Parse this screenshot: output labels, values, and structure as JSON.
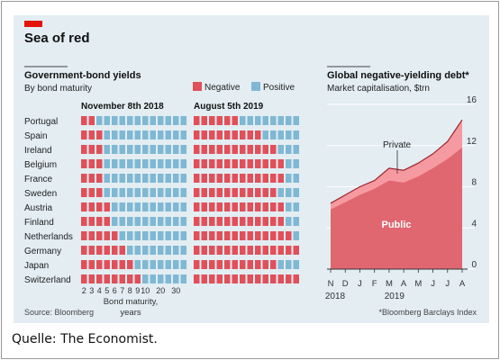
{
  "figure": {
    "title": "Sea of red",
    "source": "Source: Bloomberg",
    "footnote": "*Bloomberg Barclays Index",
    "caption": "Quelle: The Economist.",
    "colors": {
      "negative": "#e0505a",
      "positive": "#7fb8d4",
      "accent": "#e3120b",
      "background": "#e3edf2",
      "area_private": "#f59aa0",
      "area_public": "#e06670",
      "line": "#a0242c"
    }
  },
  "chart_data": [
    {
      "type": "heatmap",
      "title": "Government-bond yields",
      "subtitle": "By bond maturity",
      "legend": [
        "Negative",
        "Positive"
      ],
      "panel_titles": [
        "November 8th 2018",
        "August 5th 2019"
      ],
      "countries": [
        "Portugal",
        "Spain",
        "Ireland",
        "Belgium",
        "France",
        "Sweden",
        "Austria",
        "Finland",
        "Netherlands",
        "Germany",
        "Japan",
        "Switzerland"
      ],
      "maturity_ticks": [
        "2",
        "3",
        "4",
        "5",
        "6",
        "7",
        "8",
        "9",
        "10",
        "20",
        "30"
      ],
      "xlabel": "Bond maturity, years",
      "grid_columns": 14,
      "negative_cells_2018": [
        2,
        3,
        3,
        3,
        3,
        3,
        4,
        4,
        5,
        6,
        7,
        8
      ],
      "negative_cells_2019": [
        6,
        9,
        11,
        12,
        12,
        11,
        12,
        12,
        13,
        14,
        11,
        14
      ]
    },
    {
      "type": "area",
      "title": "Global negative-yielding debt*",
      "subtitle": "Market capitalisation, $trn",
      "series_labels": [
        "Private",
        "Public"
      ],
      "ylim": [
        0,
        16
      ],
      "yticks": [
        0,
        4,
        8,
        12,
        16
      ],
      "x_ticks": [
        "N",
        "D",
        "J",
        "F",
        "M",
        "A",
        "M",
        "J",
        "J",
        "A"
      ],
      "x_years": [
        "2018",
        "2019"
      ],
      "x": [
        "2018-11",
        "2018-12",
        "2019-01",
        "2019-02",
        "2019-03",
        "2019-04",
        "2019-05",
        "2019-06",
        "2019-07",
        "2019-08"
      ],
      "series": [
        {
          "name": "Public",
          "values": [
            5.8,
            6.5,
            7.2,
            7.8,
            8.6,
            8.4,
            9.0,
            9.8,
            10.7,
            11.8
          ]
        },
        {
          "name": "Private",
          "values": [
            6.4,
            7.2,
            8.0,
            8.6,
            9.8,
            9.6,
            10.3,
            11.2,
            12.4,
            14.5
          ]
        }
      ]
    }
  ]
}
